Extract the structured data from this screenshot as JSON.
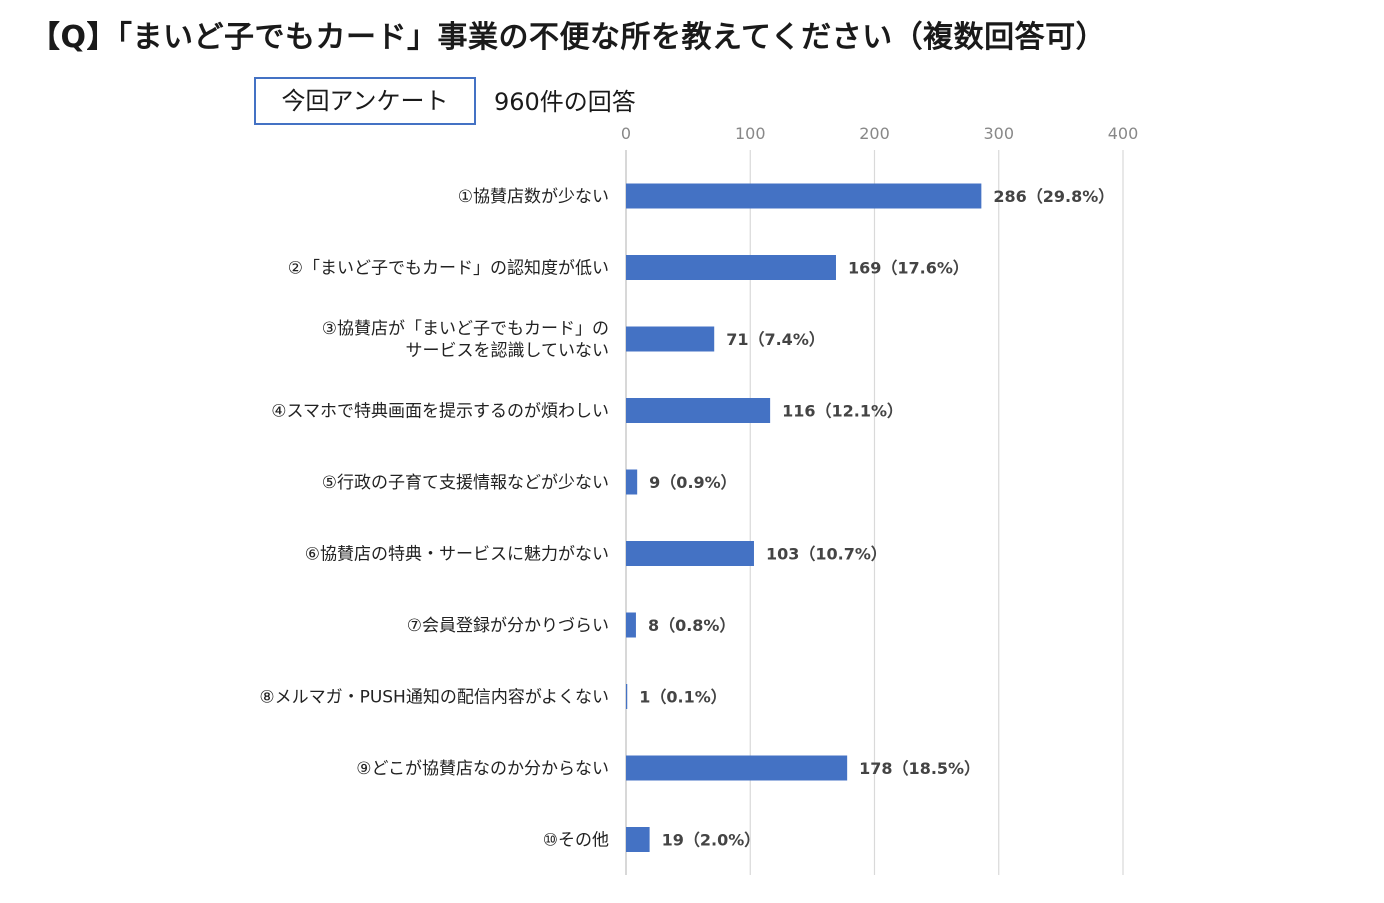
{
  "header": {
    "title": "【Q】「まいど子でもカード」事業の不便な所を教えてください（複数回答可）",
    "survey_label": "今回アンケート",
    "response_count": "960件の回答"
  },
  "chart_data": {
    "type": "bar",
    "orientation": "horizontal",
    "title": "【Q】「まいど子でもカード」事業の不便な所を教えてください（複数回答可）",
    "xlim": [
      0,
      400
    ],
    "ticks": [
      0,
      100,
      200,
      300,
      400
    ],
    "tick_labels": [
      "0",
      "100",
      "200",
      "300",
      "400"
    ],
    "grid": true,
    "bar_color": "#4472c4",
    "categories": [
      [
        "①協賛店数が少ない"
      ],
      [
        "②「まいど子でもカード」の認知度が低い"
      ],
      [
        "③協賛店が「まいど子でもカード」の",
        "サービスを認識していない"
      ],
      [
        "④スマホで特典画面を提示するのが煩わしい"
      ],
      [
        "⑤行政の子育て支援情報などが少ない"
      ],
      [
        "⑥協賛店の特典・サービスに魅力がない"
      ],
      [
        "⑦会員登録が分かりづらい"
      ],
      [
        "⑧メルマガ・PUSH通知の配信内容がよくない"
      ],
      [
        "⑨どこが協賛店なのか分からない"
      ],
      [
        "⑩その他"
      ]
    ],
    "values": [
      286,
      169,
      71,
      116,
      9,
      103,
      8,
      1,
      178,
      19
    ],
    "value_labels": [
      "286（29.8%）",
      "169（17.6%）",
      "71（7.4%）",
      "116（12.1%）",
      "9（0.9%）",
      "103（10.7%）",
      "8（0.8%）",
      "1（0.1%）",
      "178（18.5%）",
      "19（2.0%）"
    ]
  }
}
